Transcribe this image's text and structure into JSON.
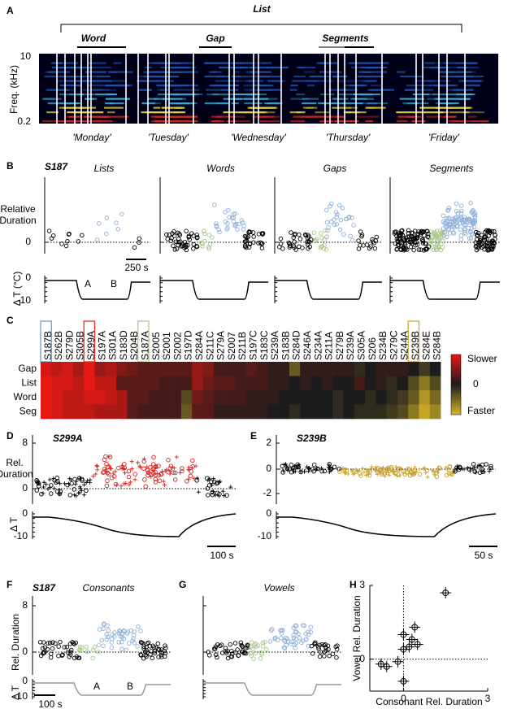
{
  "panels": {
    "a": {
      "label": "A",
      "list": "List",
      "word": "Word",
      "gap": "Gap",
      "segments": "Segments",
      "y_axis": "Freq. (kHz)",
      "y_top": "10",
      "y_bottom": "0.2",
      "words": [
        "'Monday'",
        "'Tuesday'",
        "'Wednesday'",
        "'Thursday'",
        "'Friday'"
      ]
    },
    "b": {
      "label": "B",
      "bird": "S187",
      "titles": [
        "Lists",
        "Words",
        "Gaps",
        "Segments"
      ],
      "y_axis": [
        "Relative",
        "Duration"
      ],
      "y_tick": "0",
      "t_axis": "Δ T (°C)",
      "t_ticks": [
        "0",
        "-10"
      ],
      "scale": "250 s",
      "cond_a": "A",
      "cond_b": "B"
    },
    "c": {
      "label": "C",
      "columns": [
        "S187B",
        "S262B",
        "S279D",
        "S305B",
        "S299A",
        "S197A",
        "S301A",
        "S183D",
        "S204B",
        "S187A",
        "S2005",
        "S2001",
        "S2002",
        "S197D",
        "S284A",
        "S211C",
        "S279A",
        "S2007",
        "S211B",
        "S197C",
        "S183C",
        "S239A",
        "S183B",
        "S284D",
        "S246A",
        "S234A",
        "S211A",
        "S279B",
        "S239A",
        "S305A",
        "S206",
        "S234B",
        "S279C",
        "S244A",
        "S239B",
        "S284E",
        "S284B"
      ],
      "rows": [
        "Gap",
        "List",
        "Word",
        "Seg"
      ],
      "matrix": [
        [
          0.9,
          0.8,
          0.9,
          0.7,
          1,
          0.6,
          0.7,
          0.5,
          0.4,
          0.3,
          0.3,
          0.3,
          0.3,
          0.3,
          0.6,
          0.5,
          0.2,
          0.2,
          0.2,
          0.3,
          0.2,
          0.1,
          0.1,
          -0.4,
          0.1,
          0.1,
          0.1,
          0.1,
          0.1,
          -0.1,
          0,
          0.1,
          0.1,
          0.1,
          0,
          -0.2,
          0
        ],
        [
          1,
          0.9,
          0.9,
          0.8,
          1,
          0.8,
          0.8,
          0.3,
          0.3,
          0.3,
          0.3,
          0.2,
          0.2,
          0.2,
          0.6,
          0.4,
          0.3,
          0.3,
          0.2,
          0.2,
          0.2,
          0.1,
          0.1,
          0,
          0.1,
          0,
          0.1,
          0,
          0,
          0.2,
          0,
          0.1,
          -0.1,
          0,
          -0.3,
          -0.6,
          -0.3
        ],
        [
          1,
          0.9,
          0.8,
          0.8,
          0.9,
          0.9,
          0.8,
          0.7,
          0.3,
          0.3,
          0.2,
          0.2,
          0.2,
          -0.3,
          0.4,
          0.3,
          0.2,
          0.2,
          0.2,
          0.1,
          0.1,
          0.1,
          0,
          0,
          0,
          0,
          0,
          -0.1,
          0,
          0,
          -0.1,
          0,
          -0.1,
          -0.2,
          -0.4,
          -0.8,
          -0.5
        ],
        [
          1,
          0.9,
          0.8,
          0.8,
          0.8,
          0.7,
          0.7,
          0.7,
          0.3,
          0.2,
          0.2,
          0.2,
          0.2,
          -0.4,
          0.3,
          0.3,
          0.1,
          0.1,
          0.1,
          0.1,
          0.1,
          0,
          0,
          -0.1,
          0,
          0,
          0,
          -0.1,
          0,
          -0.1,
          -0.1,
          -0.1,
          -0.2,
          -0.3,
          -0.6,
          -0.9,
          -0.7
        ]
      ],
      "slower": "Slower",
      "zero": "0",
      "faster": "Faster"
    },
    "d": {
      "label": "D",
      "bird": "S299A",
      "y_axis": [
        "Rel.",
        "Duration"
      ],
      "y_ticks": [
        "8",
        "0"
      ],
      "t_axis": "Δ T",
      "t_ticks": [
        "0",
        "-10"
      ],
      "scale": "100 s"
    },
    "e": {
      "label": "E",
      "bird": "S239B",
      "y_ticks": [
        "2",
        "0",
        "-2"
      ],
      "t_ticks": [
        "0",
        "-10"
      ],
      "scale": "50 s"
    },
    "f": {
      "label": "F",
      "bird": "S187",
      "title": "Consonants",
      "y_axis": "Rel. Duration",
      "y_ticks": [
        "8",
        "0"
      ],
      "t_axis": "Δ T",
      "t_ticks": [
        "0",
        "-10"
      ],
      "scale": "100 s",
      "cond_a": "A",
      "cond_b": "B"
    },
    "g": {
      "label": "G",
      "title": "Vowels"
    },
    "h": {
      "label": "H",
      "type": "scatter",
      "x_label": "Consonant Rel. Duration",
      "y_label": "Vowel Rel. Duration",
      "xlim": [
        -1.2,
        3
      ],
      "ylim": [
        -1.3,
        3
      ],
      "xticks": [
        0,
        3
      ],
      "yticks": [
        0,
        3
      ],
      "x": [
        1.5,
        0.4,
        0.3,
        0.5,
        0.2,
        0,
        0,
        -0.2,
        -0.6,
        -0.8,
        0
      ],
      "y": [
        2.7,
        1.3,
        0.8,
        0.6,
        0.5,
        1.0,
        0.4,
        -0.1,
        -0.3,
        -0.2,
        -0.9
      ]
    }
  }
}
